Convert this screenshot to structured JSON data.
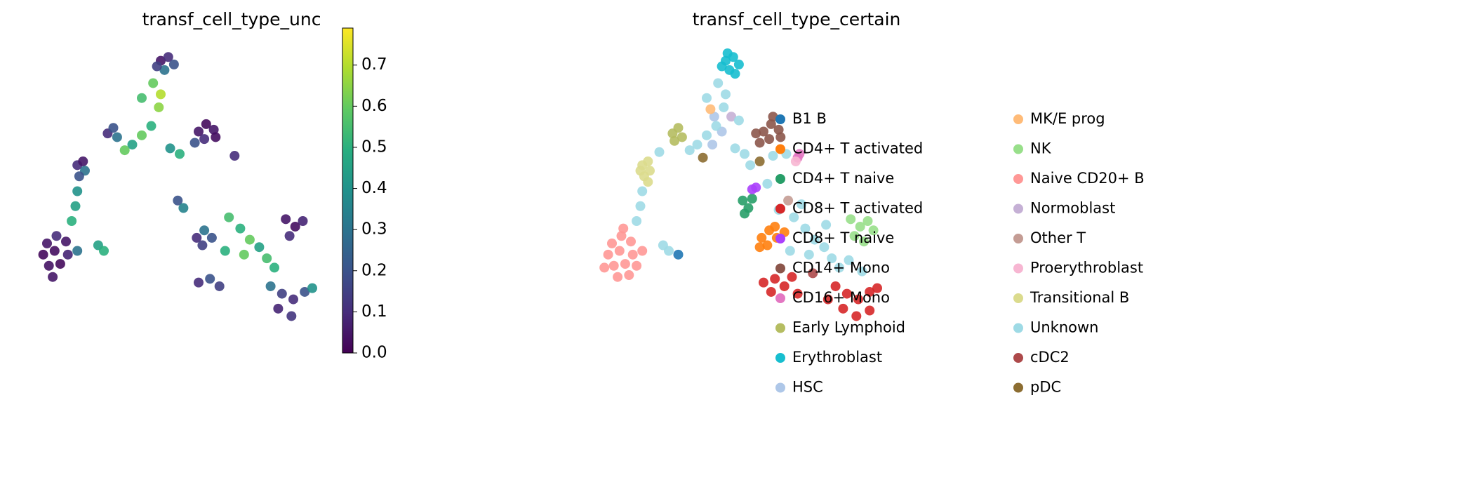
{
  "chart_data": [
    {
      "type": "scatter",
      "title": "transf_cell_type_unc",
      "colormap": "viridis",
      "xlim": [
        0,
        16
      ],
      "ylim": [
        0,
        16
      ],
      "clim": [
        0,
        0.79
      ],
      "cticks": [
        {
          "value": 0,
          "label": "0.0"
        },
        0.1,
        0.2,
        0.3,
        0.4,
        0.5,
        0.6,
        0.7
      ],
      "x": [
        7.0,
        7.4,
        7.7,
        7.2,
        6.8,
        6.6,
        7.0,
        6.0,
        6.9,
        6.5,
        6.0,
        5.5,
        7.5,
        8.0,
        5.1,
        4.2,
        4.5,
        4.7,
        9.0,
        9.4,
        9.8,
        9.3,
        8.8,
        9.9,
        10.9,
        2.6,
        2.9,
        3.0,
        2.7,
        2.6,
        2.5,
        2.3,
        1.0,
        1.5,
        2.0,
        0.8,
        1.4,
        2.1,
        1.1,
        1.7,
        1.3,
        2.6,
        3.7,
        4.0,
        7.9,
        8.2,
        8.9,
        9.3,
        9.7,
        9.2,
        13.6,
        14.1,
        14.5,
        13.8,
        10.6,
        11.2,
        11.7,
        12.2,
        12.6,
        13.0,
        11.4,
        10.4,
        9.0,
        9.6,
        10.1,
        12.8,
        13.4,
        14.0,
        14.6,
        13.2,
        13.9,
        15.0
      ],
      "y": [
        15.0,
        15.2,
        14.8,
        14.5,
        14.7,
        13.8,
        13.2,
        13.0,
        12.5,
        11.5,
        11.0,
        10.5,
        10.3,
        10.0,
        10.2,
        11.1,
        11.4,
        10.9,
        11.2,
        11.6,
        11.3,
        10.8,
        10.6,
        10.9,
        9.9,
        9.4,
        9.6,
        9.1,
        8.8,
        8.0,
        7.2,
        6.4,
        5.2,
        5.6,
        5.3,
        4.6,
        4.8,
        4.6,
        4.0,
        4.1,
        3.4,
        4.8,
        5.1,
        4.8,
        7.5,
        7.1,
        5.5,
        5.9,
        5.5,
        5.1,
        6.5,
        6.1,
        6.4,
        5.6,
        6.6,
        6.0,
        5.4,
        5.0,
        4.4,
        3.9,
        4.6,
        4.8,
        3.1,
        3.3,
        2.9,
        2.9,
        2.5,
        2.2,
        2.6,
        1.7,
        1.3,
        2.8
      ],
      "values": [
        0.05,
        0.1,
        0.2,
        0.3,
        0.15,
        0.6,
        0.7,
        0.55,
        0.65,
        0.5,
        0.6,
        0.45,
        0.4,
        0.5,
        0.6,
        0.1,
        0.2,
        0.3,
        0.05,
        0.02,
        0.05,
        0.1,
        0.2,
        0.03,
        0.1,
        0.1,
        0.05,
        0.3,
        0.2,
        0.4,
        0.45,
        0.5,
        0.05,
        0.1,
        0.05,
        0.02,
        0.03,
        0.08,
        0.04,
        0.02,
        0.05,
        0.3,
        0.45,
        0.5,
        0.2,
        0.35,
        0.1,
        0.3,
        0.2,
        0.15,
        0.05,
        0.03,
        0.08,
        0.1,
        0.55,
        0.5,
        0.6,
        0.45,
        0.55,
        0.5,
        0.6,
        0.5,
        0.1,
        0.2,
        0.15,
        0.3,
        0.15,
        0.1,
        0.2,
        0.08,
        0.12,
        0.4
      ]
    },
    {
      "type": "scatter",
      "title": "transf_cell_type_certain",
      "xlim": [
        0,
        16
      ],
      "ylim": [
        0,
        16
      ],
      "legend": "right",
      "series": [
        {
          "name": "B1 B",
          "color": "#1f77b4",
          "x": [
            4.5
          ],
          "y": [
            4.6
          ]
        },
        {
          "name": "CD4+ T activated",
          "color": "#ff7f0e",
          "x": [
            8.9,
            9.3,
            9.7,
            9.2,
            8.8,
            9.6,
            10.1
          ],
          "y": [
            5.5,
            5.9,
            5.5,
            5.1,
            5.0,
            6.1,
            5.8
          ]
        },
        {
          "name": "CD4+ T naive",
          "color": "#279e68",
          "x": [
            7.9,
            8.2,
            8.0,
            8.4
          ],
          "y": [
            7.5,
            7.1,
            6.8,
            7.6
          ]
        },
        {
          "name": "CD8+ T activated",
          "color": "#d62728",
          "x": [
            9.0,
            9.6,
            10.1,
            9.4,
            10.5,
            12.8,
            13.4,
            14.0,
            14.6,
            13.2,
            13.9,
            14.6,
            15.0,
            12.4,
            10.8
          ],
          "y": [
            3.1,
            3.3,
            2.9,
            2.6,
            3.4,
            2.9,
            2.5,
            2.2,
            2.6,
            1.7,
            1.3,
            1.6,
            2.8,
            2.2,
            2.5
          ]
        },
        {
          "name": "CD8+ T naive",
          "color": "#aa40fc",
          "x": [
            8.4,
            8.6
          ],
          "y": [
            8.1,
            8.2
          ]
        },
        {
          "name": "CD14+ Mono",
          "color": "#8c564b",
          "x": [
            9.0,
            9.4,
            9.8,
            9.3,
            8.8,
            9.9,
            8.6,
            9.5
          ],
          "y": [
            11.2,
            11.6,
            11.3,
            10.8,
            10.6,
            10.9,
            11.1,
            12.0
          ]
        },
        {
          "name": "CD16+ Mono",
          "color": "#e377c2",
          "x": [
            10.8,
            10.9
          ],
          "y": [
            9.8,
            10.0
          ]
        },
        {
          "name": "Early Lymphoid",
          "color": "#b5bd61",
          "x": [
            4.2,
            4.5,
            4.7,
            4.3
          ],
          "y": [
            11.1,
            11.4,
            10.9,
            10.7
          ]
        },
        {
          "name": "Erythroblast",
          "color": "#17becf",
          "x": [
            7.0,
            7.4,
            7.7,
            7.2,
            6.8,
            7.5,
            7.1
          ],
          "y": [
            15.0,
            15.2,
            14.8,
            14.5,
            14.7,
            14.3,
            15.4
          ]
        },
        {
          "name": "HSC",
          "color": "#aec7e8",
          "x": [
            6.4,
            6.8,
            6.3
          ],
          "y": [
            12.0,
            11.2,
            10.5
          ]
        },
        {
          "name": "MK/E prog",
          "color": "#ffbb78",
          "x": [
            6.2
          ],
          "y": [
            12.4
          ]
        },
        {
          "name": "NK",
          "color": "#98df8a",
          "x": [
            13.6,
            14.1,
            14.5,
            13.8,
            14.3,
            14.8
          ],
          "y": [
            6.5,
            6.1,
            6.4,
            5.6,
            5.3,
            5.9
          ]
        },
        {
          "name": "Naive CD20+ B",
          "color": "#ff9896",
          "x": [
            1.0,
            1.5,
            2.0,
            0.8,
            1.4,
            2.1,
            1.1,
            1.7,
            2.3,
            1.3,
            1.9,
            0.6,
            2.6,
            1.6
          ],
          "y": [
            5.2,
            5.6,
            5.3,
            4.6,
            4.8,
            4.6,
            4.0,
            4.1,
            4.0,
            3.4,
            3.5,
            3.9,
            4.8,
            6.0
          ]
        },
        {
          "name": "Normoblast",
          "color": "#c5b0d5",
          "x": [
            7.3
          ],
          "y": [
            12.0
          ]
        },
        {
          "name": "Other T",
          "color": "#c49c94",
          "x": [
            10.3
          ],
          "y": [
            7.5
          ]
        },
        {
          "name": "Proerythroblast",
          "color": "#f7b6d2",
          "x": [
            10.7
          ],
          "y": [
            9.6
          ]
        },
        {
          "name": "Transitional B",
          "color": "#dbdb8d",
          "x": [
            2.6,
            2.9,
            3.0,
            2.7,
            2.5,
            2.9
          ],
          "y": [
            9.4,
            9.6,
            9.1,
            8.8,
            9.1,
            8.5
          ]
        },
        {
          "name": "Unknown",
          "color": "#9edae5",
          "x": [
            6.6,
            7.0,
            6.0,
            6.9,
            6.5,
            6.0,
            5.5,
            7.5,
            8.0,
            5.1,
            3.5,
            2.6,
            2.5,
            2.3,
            3.7,
            4.0,
            8.3,
            9.5,
            10.2,
            9.2,
            9.8,
            10.6,
            11.2,
            11.7,
            12.2,
            12.6,
            13.0,
            11.4,
            10.4,
            13.5,
            14.2,
            11.0,
            12.3,
            7.7
          ],
          "y": [
            13.8,
            13.2,
            13.0,
            12.5,
            11.5,
            11.0,
            10.5,
            10.3,
            10.0,
            10.2,
            10.1,
            8.0,
            7.2,
            6.4,
            5.1,
            4.8,
            9.4,
            9.9,
            10.0,
            8.4,
            7.0,
            6.6,
            6.0,
            5.4,
            5.0,
            4.4,
            3.9,
            4.6,
            4.8,
            4.3,
            3.7,
            7.3,
            6.2,
            11.8
          ]
        },
        {
          "name": "cDC2",
          "color": "#ad494a",
          "x": [
            11.6
          ],
          "y": [
            3.6
          ]
        },
        {
          "name": "pDC",
          "color": "#8c6d31",
          "x": [
            5.8,
            8.8
          ],
          "y": [
            9.8,
            9.6
          ]
        }
      ]
    }
  ]
}
